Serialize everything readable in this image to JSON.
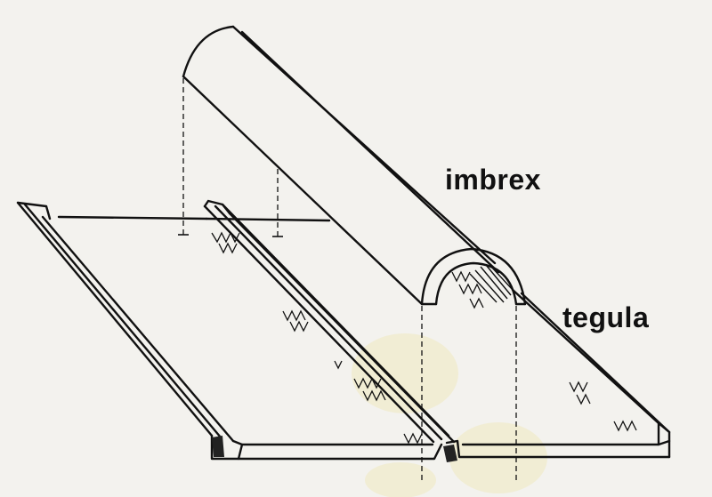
{
  "labels": {
    "imbrex": "imbrex",
    "tegula": "tegula"
  },
  "colors": {
    "ink": "#111111",
    "paper": "#f3f2ee",
    "stain": "#efe7b4"
  }
}
